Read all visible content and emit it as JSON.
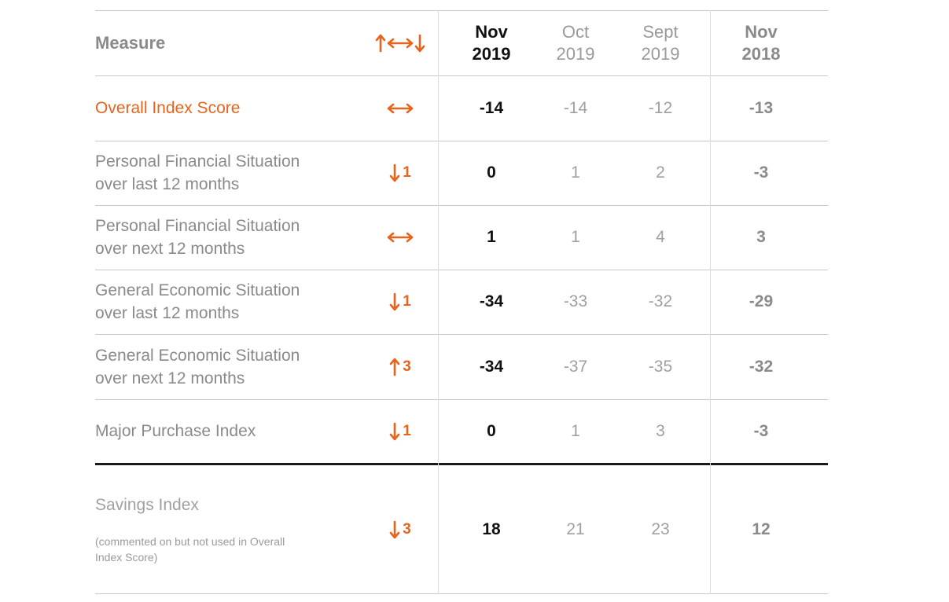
{
  "chart_data": {
    "type": "table",
    "columns": {
      "measure": "Measure",
      "trend_symbol": "↑↔↓",
      "periods": [
        {
          "line1": "Nov",
          "line2": "2019"
        },
        {
          "line1": "Oct",
          "line2": "2019"
        },
        {
          "line1": "Sept",
          "line2": "2019"
        },
        {
          "line1": "Nov",
          "line2": "2018"
        }
      ]
    },
    "rows": [
      {
        "label_lines": [
          "Overall Index Score"
        ],
        "trend": {
          "direction": "flat",
          "change": ""
        },
        "values": [
          "-14",
          "-14",
          "-12",
          "-13"
        ]
      },
      {
        "label_lines": [
          "Personal Financial Situation",
          "over last 12 months"
        ],
        "trend": {
          "direction": "down",
          "change": "1"
        },
        "values": [
          "0",
          "1",
          "2",
          "-3"
        ]
      },
      {
        "label_lines": [
          "Personal Financial Situation",
          "over next 12 months"
        ],
        "trend": {
          "direction": "flat",
          "change": ""
        },
        "values": [
          "1",
          "1",
          "4",
          "3"
        ]
      },
      {
        "label_lines": [
          "General Economic Situation",
          "over last 12 months"
        ],
        "trend": {
          "direction": "down",
          "change": "1"
        },
        "values": [
          "-34",
          "-33",
          "-32",
          "-29"
        ]
      },
      {
        "label_lines": [
          "General Economic Situation",
          "over next 12 months"
        ],
        "trend": {
          "direction": "up",
          "change": "3"
        },
        "values": [
          "-34",
          "-37",
          "-35",
          "-32"
        ]
      },
      {
        "label_lines": [
          "Major Purchase Index"
        ],
        "trend": {
          "direction": "down",
          "change": "1"
        },
        "values": [
          "0",
          "1",
          "3",
          "-3"
        ]
      },
      {
        "label_lines": [
          "Savings Index"
        ],
        "note_lines": [
          "(commented on but not used in Overall",
          "Index Score)"
        ],
        "trend": {
          "direction": "down",
          "change": "3"
        },
        "values": [
          "18",
          "21",
          "23",
          "12"
        ]
      }
    ],
    "colors": {
      "accent": "#e8641c",
      "current_value": "#111111",
      "previous_value": "#a0a0a0",
      "year_ago_value": "#8a8a8a",
      "label": "#8a8a8a",
      "rule": "#c8c8c8",
      "heavy_rule": "#1a1a1a"
    }
  }
}
